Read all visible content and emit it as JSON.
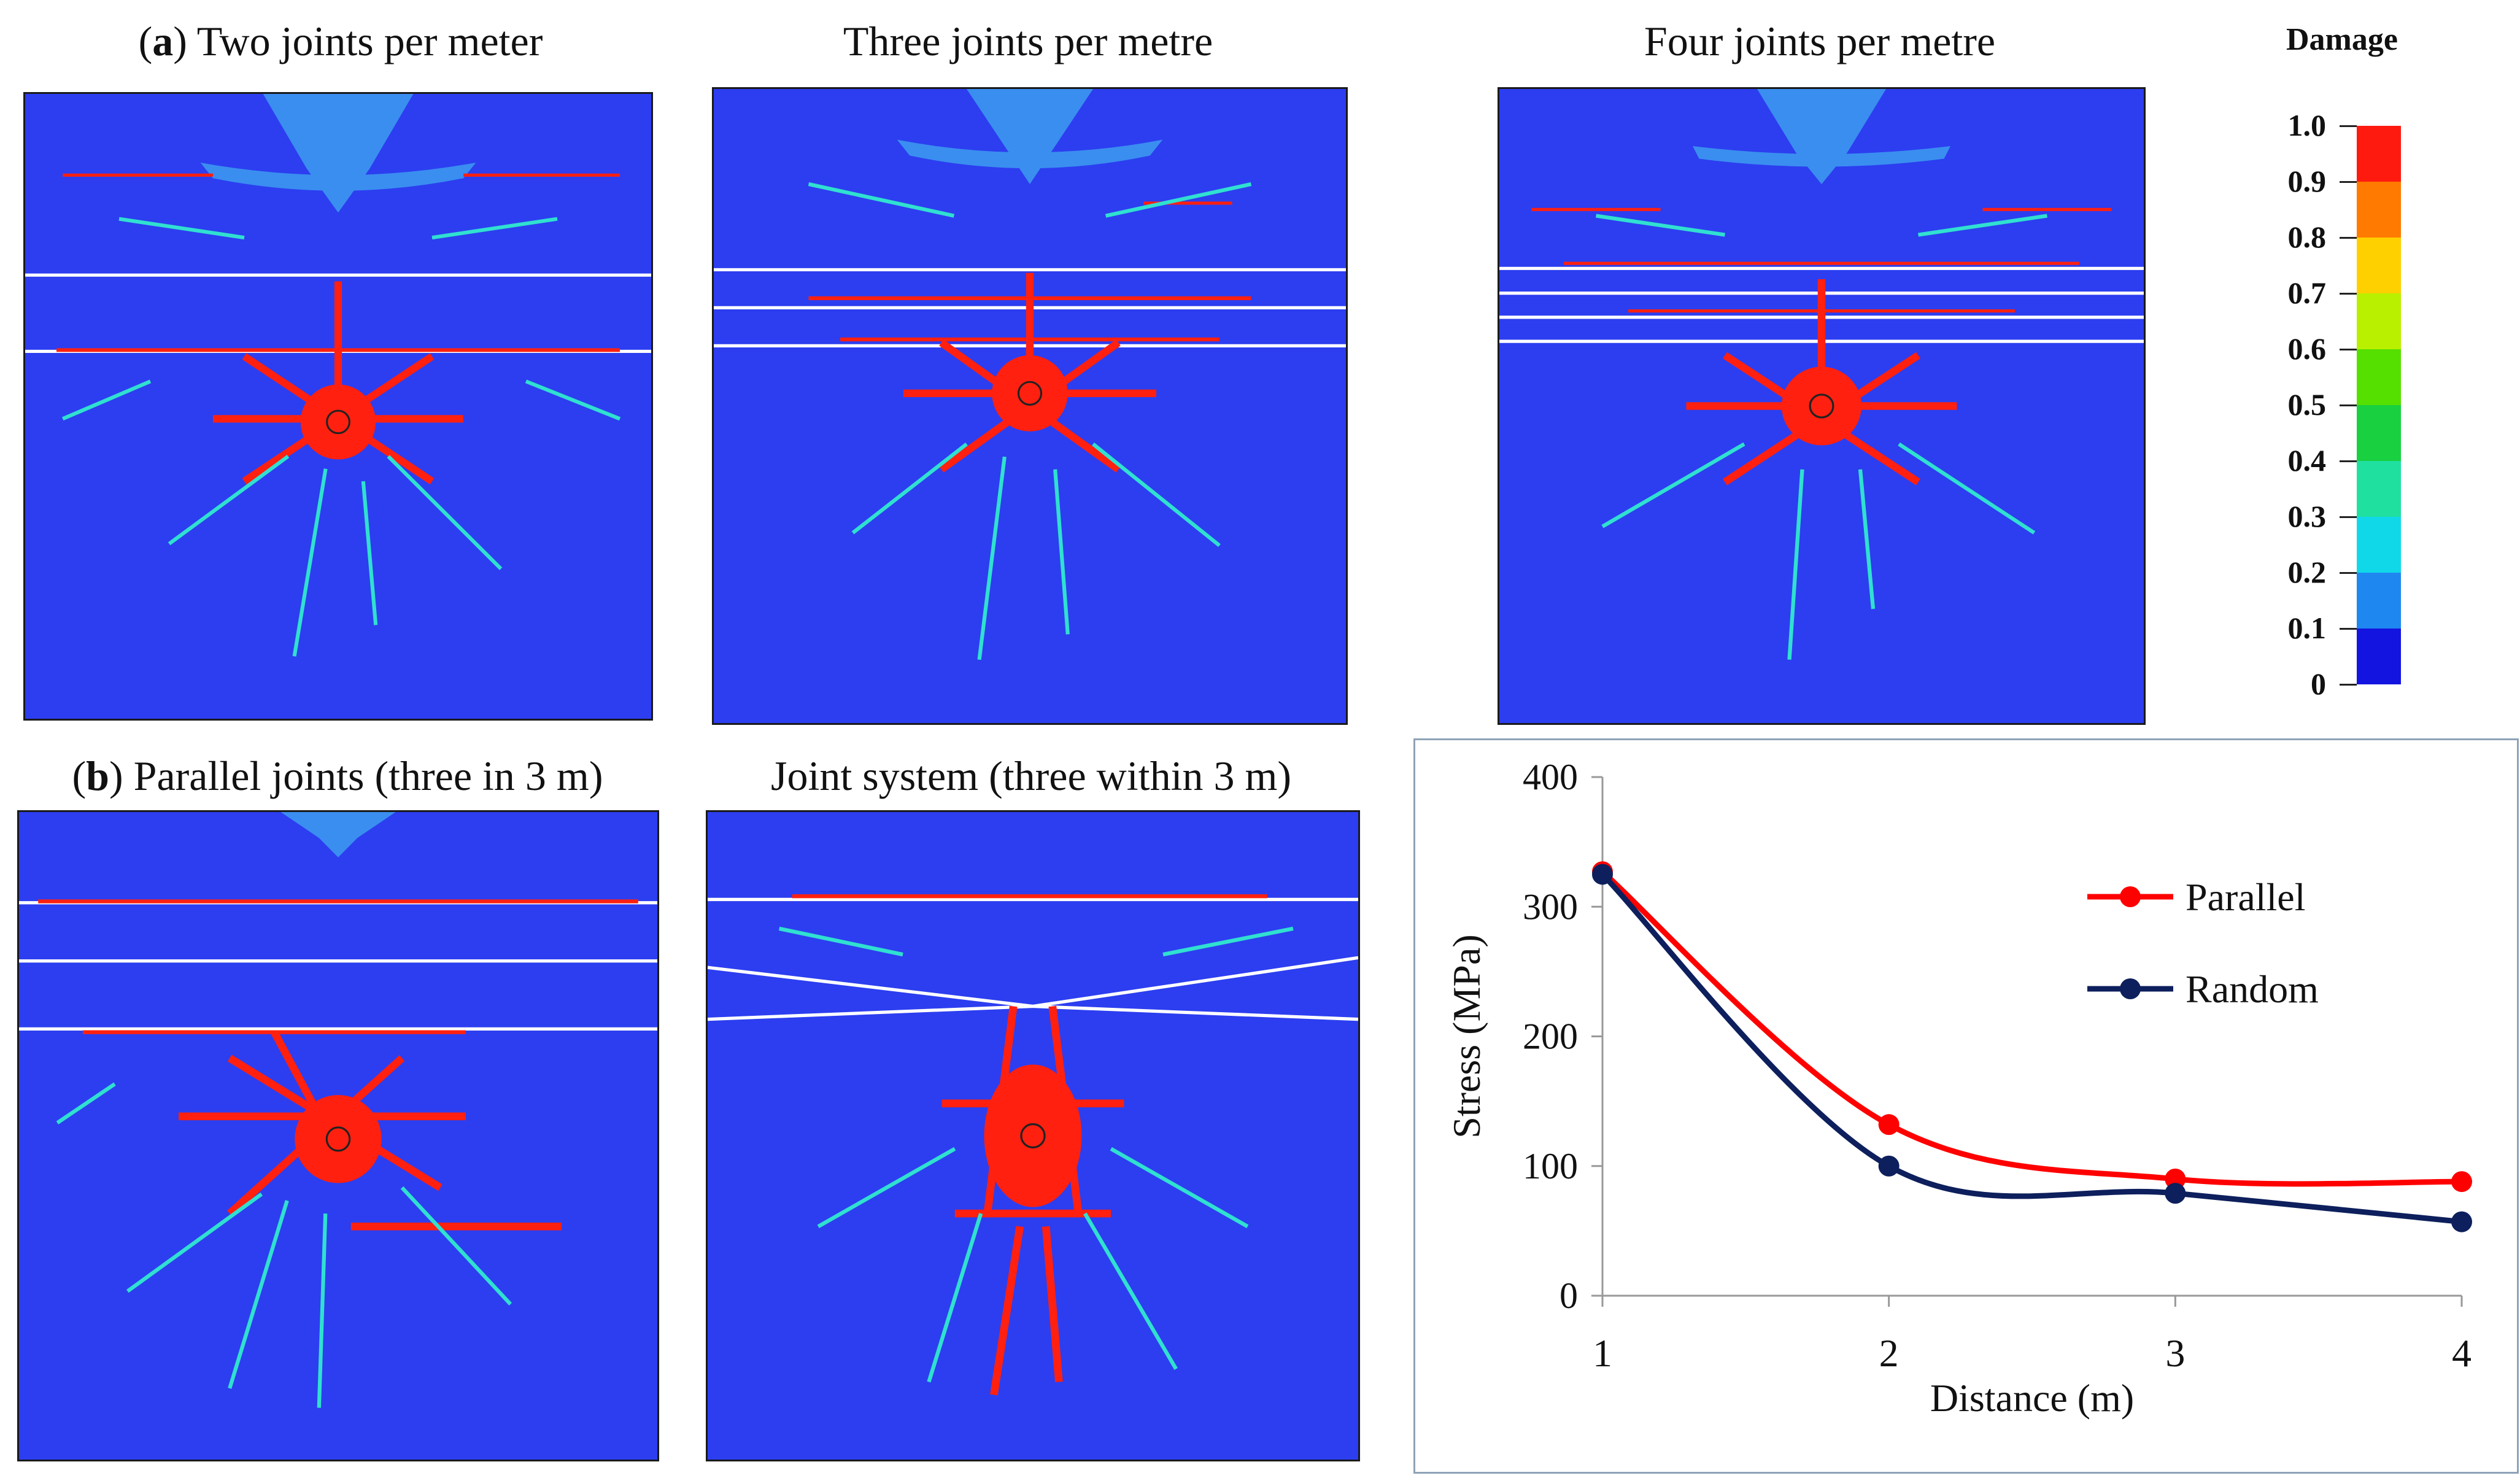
{
  "part_a": {
    "label": "a",
    "panels": [
      {
        "title": "Two joints per meter"
      },
      {
        "title": "Three joints per metre"
      },
      {
        "title": "Four joints per metre"
      }
    ]
  },
  "part_b": {
    "label": "b",
    "panels": [
      {
        "title": "Parallel joints (three in 3 m)"
      },
      {
        "title": "Joint system (three within 3 m)"
      }
    ]
  },
  "legend": {
    "title": "Damage",
    "ticks": [
      "1.0",
      "0.9",
      "0.8",
      "0.7",
      "0.6",
      "0.5",
      "0.4",
      "0.3",
      "0.2",
      "0.1",
      "0"
    ],
    "colors": [
      "#ff1a0f",
      "#ff7a00",
      "#ffd000",
      "#b8f000",
      "#55e000",
      "#18d040",
      "#20e0a0",
      "#10d8e8",
      "#1e88f0",
      "#1414e0"
    ]
  },
  "chart_data": {
    "type": "line",
    "xlabel": "Distance (m)",
    "ylabel": "Stress (MPa)",
    "x": [
      1,
      2,
      3,
      4
    ],
    "xticks": [
      "1",
      "2",
      "3",
      "4"
    ],
    "yticks": [
      "0",
      "100",
      "200",
      "300",
      "400"
    ],
    "ylim": [
      0,
      400
    ],
    "legend_position": "top-right",
    "series": [
      {
        "name": "Parallel",
        "color": "#ff0000",
        "values": [
          327,
          132,
          90,
          88
        ]
      },
      {
        "name": "Random",
        "color": "#0d1f5c",
        "values": [
          325,
          100,
          79,
          57
        ]
      }
    ]
  }
}
